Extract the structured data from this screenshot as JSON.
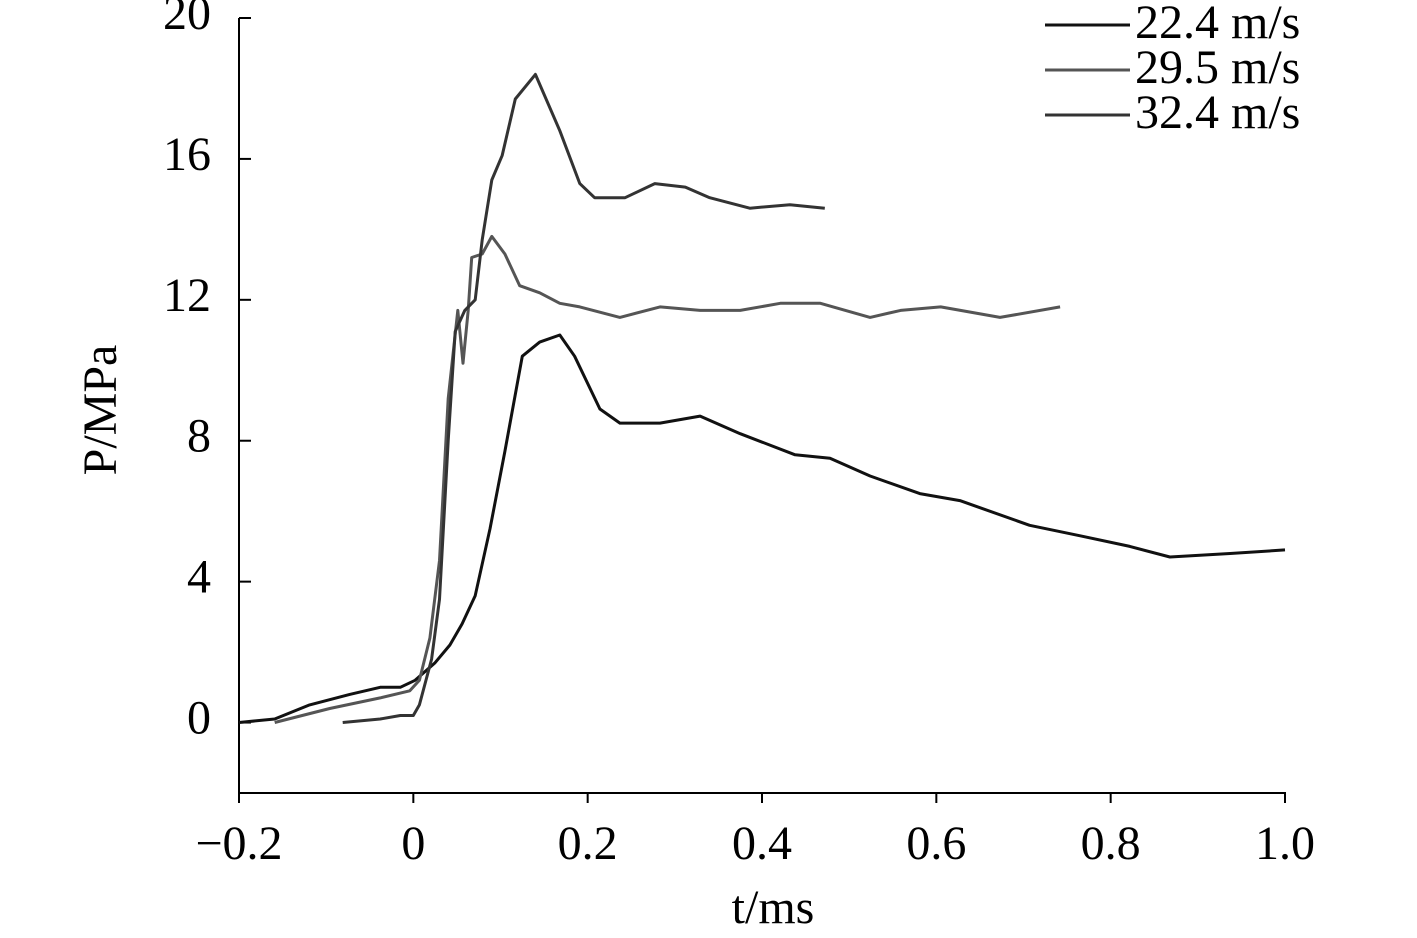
{
  "chart_data": {
    "type": "line",
    "xlabel": "t/ms",
    "ylabel": "P/MPa",
    "xlim": [
      -0.2,
      1.0
    ],
    "xticks": [
      {
        "value": -0.2,
        "label": "−0.2"
      },
      0,
      0.2,
      0.4,
      0.6,
      0.8,
      {
        "value": 1.0,
        "label": "1.0"
      }
    ],
    "ylim": [
      -2,
      20
    ],
    "yticks": [
      0,
      4,
      8,
      12,
      16,
      20
    ],
    "legend": "upper right",
    "series": [
      {
        "name": "22.4 m/s",
        "color": "#111111",
        "x": [
          -0.2,
          -0.159,
          -0.119,
          -0.073,
          -0.038,
          -0.015,
          0.002,
          0.025,
          0.042,
          0.056,
          0.071,
          0.088,
          0.105,
          0.125,
          0.145,
          0.168,
          0.185,
          0.214,
          0.237,
          0.283,
          0.329,
          0.375,
          0.438,
          0.478,
          0.524,
          0.581,
          0.627,
          0.707,
          0.765,
          0.822,
          0.868,
          0.937,
          1.0
        ],
        "values": [
          0.0,
          0.1,
          0.5,
          0.8,
          1.0,
          1.0,
          1.2,
          1.7,
          2.2,
          2.8,
          3.6,
          5.5,
          7.7,
          10.4,
          10.8,
          11.0,
          10.4,
          8.9,
          8.5,
          8.5,
          8.7,
          8.2,
          7.6,
          7.5,
          7.0,
          6.5,
          6.3,
          5.6,
          5.3,
          5.0,
          4.7,
          4.8,
          4.9
        ]
      },
      {
        "name": "29.5 m/s",
        "color": "#555555",
        "x": [
          -0.159,
          -0.096,
          -0.038,
          -0.004,
          0.007,
          0.019,
          0.03,
          0.04,
          0.051,
          0.057,
          0.063,
          0.067,
          0.079,
          0.09,
          0.105,
          0.122,
          0.145,
          0.168,
          0.191,
          0.237,
          0.283,
          0.329,
          0.375,
          0.421,
          0.467,
          0.524,
          0.559,
          0.605,
          0.673,
          0.742
        ],
        "values": [
          0.0,
          0.4,
          0.7,
          0.9,
          1.2,
          2.4,
          4.6,
          9.2,
          11.7,
          10.2,
          11.7,
          13.2,
          13.3,
          13.8,
          13.3,
          12.4,
          12.2,
          11.9,
          11.8,
          11.5,
          11.8,
          11.7,
          11.7,
          11.9,
          11.9,
          11.5,
          11.7,
          11.8,
          11.5,
          11.8
        ]
      },
      {
        "name": "32.4 m/s",
        "color": "#333333",
        "x": [
          -0.081,
          -0.038,
          -0.015,
          0.0,
          0.007,
          0.021,
          0.03,
          0.04,
          0.048,
          0.059,
          0.071,
          0.079,
          0.09,
          0.102,
          0.117,
          0.14,
          0.168,
          0.191,
          0.208,
          0.243,
          0.277,
          0.312,
          0.34,
          0.386,
          0.432,
          0.472
        ],
        "values": [
          0.0,
          0.1,
          0.2,
          0.2,
          0.5,
          1.8,
          3.5,
          8.0,
          11.1,
          11.7,
          12.0,
          13.7,
          15.4,
          16.1,
          17.7,
          18.4,
          16.8,
          15.3,
          14.9,
          14.9,
          15.3,
          15.2,
          14.9,
          14.6,
          14.7,
          14.6
        ]
      }
    ]
  }
}
